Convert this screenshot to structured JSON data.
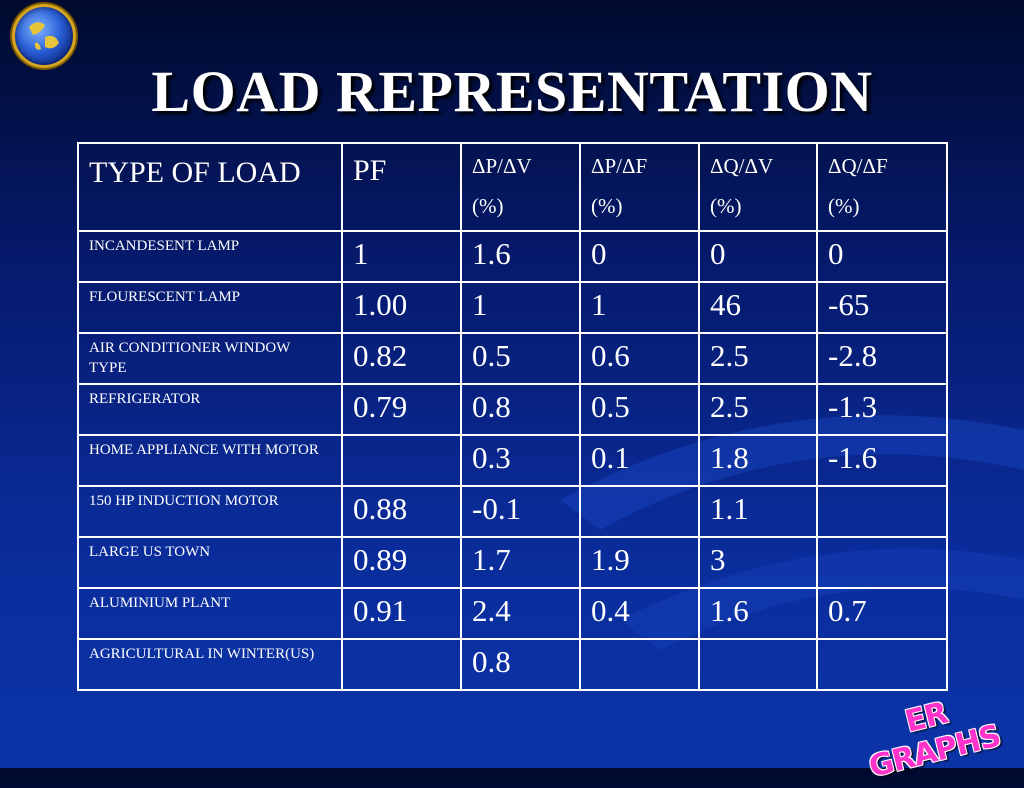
{
  "slide": {
    "title": "LOAD REPRESENTATION",
    "colors": {
      "background": "#0a2c9a",
      "text": "#ffffff",
      "title_shadow": "#000000",
      "logo_pink": "#ff33cc",
      "globe_ring": "#d9a520"
    },
    "icons": {
      "corner": "globe-icon"
    }
  },
  "table": {
    "headers": [
      {
        "line1": "TYPE OF LOAD",
        "line2": ""
      },
      {
        "line1": "PF",
        "line2": ""
      },
      {
        "line1": "ΔP/ΔV",
        "line2": "(%)"
      },
      {
        "line1": "ΔP/ΔF",
        "line2": "(%)"
      },
      {
        "line1": "ΔQ/ΔV",
        "line2": "(%)"
      },
      {
        "line1": "ΔQ/ΔF",
        "line2": "(%)"
      }
    ],
    "rows": [
      {
        "type": "INCANDESENT LAMP",
        "pf": "1",
        "dp_dv": "1.6",
        "dp_df": "0",
        "dq_dv": "0",
        "dq_df": "0"
      },
      {
        "type": "FLOURESCENT LAMP",
        "pf": "1.00",
        "dp_dv": "1",
        "dp_df": "1",
        "dq_dv": "46",
        "dq_df": "-65"
      },
      {
        "type": "AIR CONDITIONER WINDOW TYPE",
        "pf": "0.82",
        "dp_dv": "0.5",
        "dp_df": "0.6",
        "dq_dv": "2.5",
        "dq_df": "-2.8"
      },
      {
        "type": "REFRIGERATOR",
        "pf": "0.79",
        "dp_dv": "0.8",
        "dp_df": "0.5",
        "dq_dv": "2.5",
        "dq_df": "-1.3"
      },
      {
        "type": "HOME APPLIANCE WITH MOTOR",
        "pf": "",
        "dp_dv": "0.3",
        "dp_df": "0.1",
        "dq_dv": "1.8",
        "dq_df": "-1.6"
      },
      {
        "type": "150 HP INDUCTION MOTOR",
        "pf": "0.88",
        "dp_dv": "-0.1",
        "dp_df": "",
        "dq_dv": "1.1",
        "dq_df": ""
      },
      {
        "type": "LARGE US TOWN",
        "pf": "0.89",
        "dp_dv": "1.7",
        "dp_df": "1.9",
        "dq_dv": "3",
        "dq_df": ""
      },
      {
        "type": "ALUMINIUM PLANT",
        "pf": "0.91",
        "dp_dv": "2.4",
        "dp_df": "0.4",
        "dq_dv": "1.6",
        "dq_df": "0.7"
      },
      {
        "type": "AGRICULTURAL IN WINTER(US)",
        "pf": "",
        "dp_dv": "0.8",
        "dp_df": "",
        "dq_dv": "",
        "dq_df": ""
      }
    ]
  },
  "watermark": {
    "text": "ER GRAPHS"
  }
}
